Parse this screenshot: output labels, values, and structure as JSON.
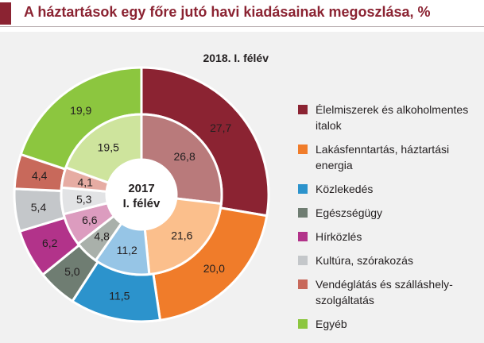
{
  "title": "A háztartások egy főre jutó havi kiadásainak megoszlása, %",
  "chart_data": {
    "type": "pie",
    "variant": "nested-donut",
    "title": "A háztartások egy főre jutó havi kiadásainak megoszlása, %",
    "unit": "%",
    "categories": [
      "Élelmiszerek és alkoholmentes italok",
      "Lakásfenntartás, háztartási energia",
      "Közlekedés",
      "Egészségügy",
      "Hírközlés",
      "Kultúra, szórakozás",
      "Vendéglátás és szálláshely-szolgáltatás",
      "Egyéb"
    ],
    "colors": [
      "#8b2332",
      "#f07c2a",
      "#2c93cc",
      "#6f7d72",
      "#b2338a",
      "#c4c7ca",
      "#c8695b",
      "#8cc63f"
    ],
    "inner_colors": [
      "#b97a7b",
      "#fbbf8c",
      "#96c5e6",
      "#a9b0aa",
      "#dc9cbf",
      "#e2e3e5",
      "#e6aca3",
      "#cee49d"
    ],
    "series": [
      {
        "name": "2018. I. félév",
        "ring": "outer",
        "values": [
          27.7,
          20.0,
          11.5,
          5.0,
          6.2,
          5.4,
          4.4,
          19.9
        ]
      },
      {
        "name": "2017 I. félév",
        "ring": "inner",
        "values": [
          26.8,
          21.6,
          11.2,
          4.8,
          6.6,
          5.3,
          4.1,
          19.5
        ]
      }
    ],
    "labels": {
      "outer": [
        "27,7",
        "20,0",
        "11,5",
        "5,0",
        "6,2",
        "5,4",
        "4,4",
        "19,9"
      ],
      "inner": [
        "26,8",
        "21,6",
        "11,2",
        "4,8",
        "6,6",
        "5,3",
        "4,1",
        "19,5"
      ]
    },
    "outer_ring_label": "2018. I. félév",
    "center_label_line1": "2017",
    "center_label_line2": "I. félév",
    "legend_position": "right"
  }
}
